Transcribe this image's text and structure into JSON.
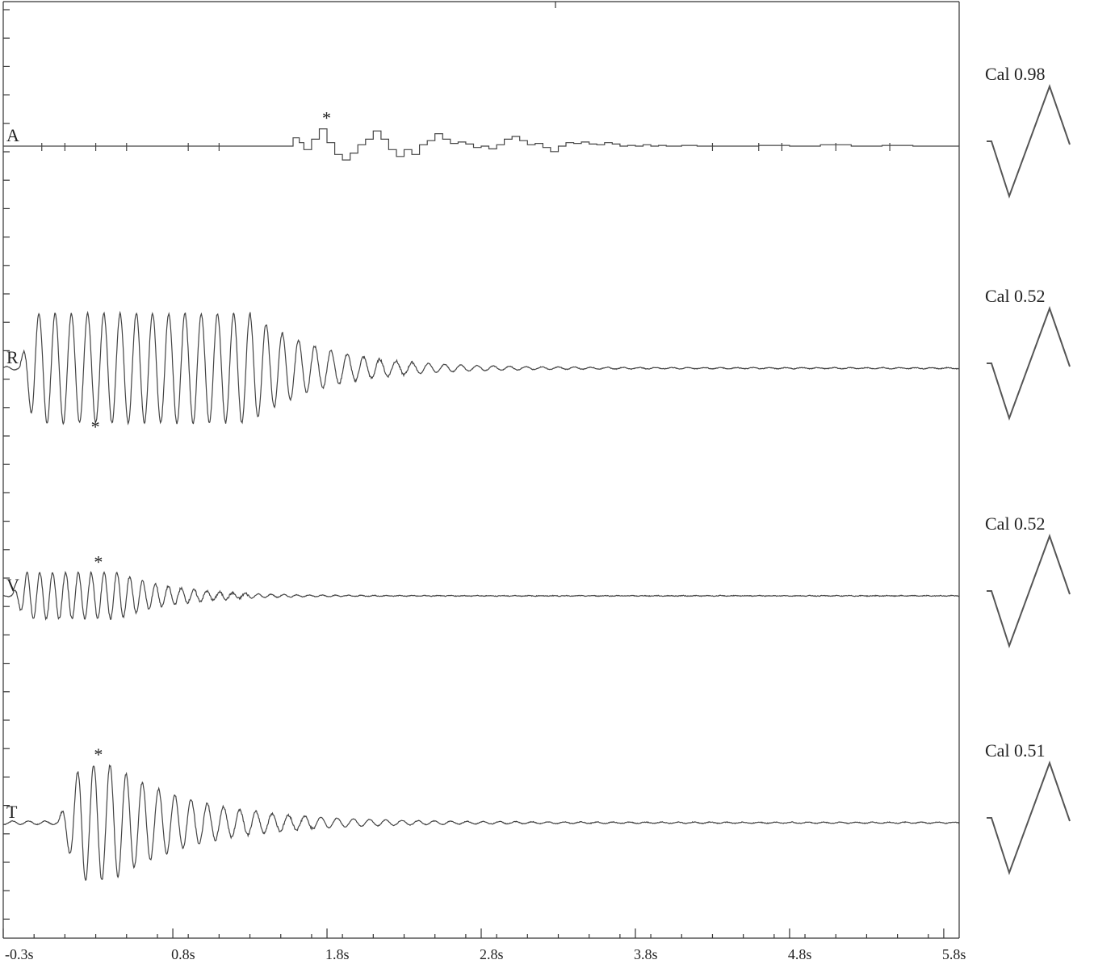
{
  "chart_data": {
    "type": "line",
    "x_unit": "s",
    "xlim": [
      -0.3,
      5.9
    ],
    "x_ticks": [
      "-0.3s",
      "0.8s",
      "1.8s",
      "2.8s",
      "3.8s",
      "4.8s",
      "5.8s"
    ],
    "x_tick_values": [
      -0.3,
      0.8,
      1.8,
      2.8,
      3.8,
      4.8,
      5.8
    ],
    "series": [
      {
        "name": "A",
        "calibration": "Cal 0.98",
        "kind": "step",
        "peak_marker": "*",
        "peak_time": 1.8,
        "x": [
          -0.3,
          1.55,
          1.58,
          1.62,
          1.65,
          1.7,
          1.75,
          1.8,
          1.85,
          1.9,
          1.95,
          2.0,
          2.05,
          2.1,
          2.15,
          2.2,
          2.25,
          2.3,
          2.35,
          2.4,
          2.45,
          2.5,
          2.55,
          2.6,
          2.65,
          2.7,
          2.75,
          2.8,
          2.85,
          2.9,
          2.95,
          3.0,
          3.05,
          3.1,
          3.15,
          3.2,
          3.25,
          3.3,
          3.35,
          3.4,
          3.45,
          3.5,
          3.55,
          3.6,
          3.65,
          3.7,
          3.75,
          3.8,
          3.85,
          3.9,
          3.95,
          4.0,
          4.1,
          4.2,
          4.4,
          4.6,
          4.8,
          5.0,
          5.2,
          5.4,
          5.6,
          5.9
        ],
        "y": [
          0,
          0,
          0.12,
          0.05,
          -0.05,
          0.1,
          0.25,
          0.05,
          -0.12,
          -0.2,
          -0.1,
          0.02,
          0.1,
          0.22,
          0.1,
          -0.05,
          -0.15,
          -0.05,
          -0.12,
          0.02,
          0.08,
          0.18,
          0.1,
          0.04,
          0.06,
          0.03,
          -0.02,
          0.0,
          -0.04,
          0.02,
          0.1,
          0.14,
          0.08,
          0.02,
          0.04,
          -0.02,
          -0.08,
          0.0,
          0.05,
          0.04,
          0.06,
          0.03,
          0.02,
          0.05,
          0.03,
          0.0,
          0.01,
          0.0,
          0.02,
          0.0,
          0.01,
          0.0,
          0.01,
          0.0,
          0.0,
          0.01,
          0.0,
          0.02,
          0.0,
          0.01,
          0.0,
          0.0
        ]
      },
      {
        "name": "R",
        "calibration": "Cal 0.52",
        "kind": "damped",
        "peak_marker": "*",
        "peak_time": 0.3,
        "amplitude": 0.95,
        "frequency_hz": 9.5,
        "onset_s": -0.2,
        "ramp_s": 0.1,
        "hold_s": 1.4,
        "decay_s": 0.45
      },
      {
        "name": "V",
        "calibration": "Cal 0.52",
        "kind": "damped",
        "peak_marker": "*",
        "peak_time": 0.32,
        "amplitude": 0.4,
        "frequency_hz": 12,
        "onset_s": -0.25,
        "ramp_s": 0.1,
        "hold_s": 0.6,
        "decay_s": 0.35
      },
      {
        "name": "T",
        "calibration": "Cal 0.51",
        "kind": "damped",
        "peak_marker": "*",
        "peak_time": 0.32,
        "amplitude": 1.0,
        "frequency_hz": 9.5,
        "onset_s": 0.05,
        "ramp_s": 0.15,
        "hold_s": 0.2,
        "decay_s": 0.55
      }
    ]
  }
}
